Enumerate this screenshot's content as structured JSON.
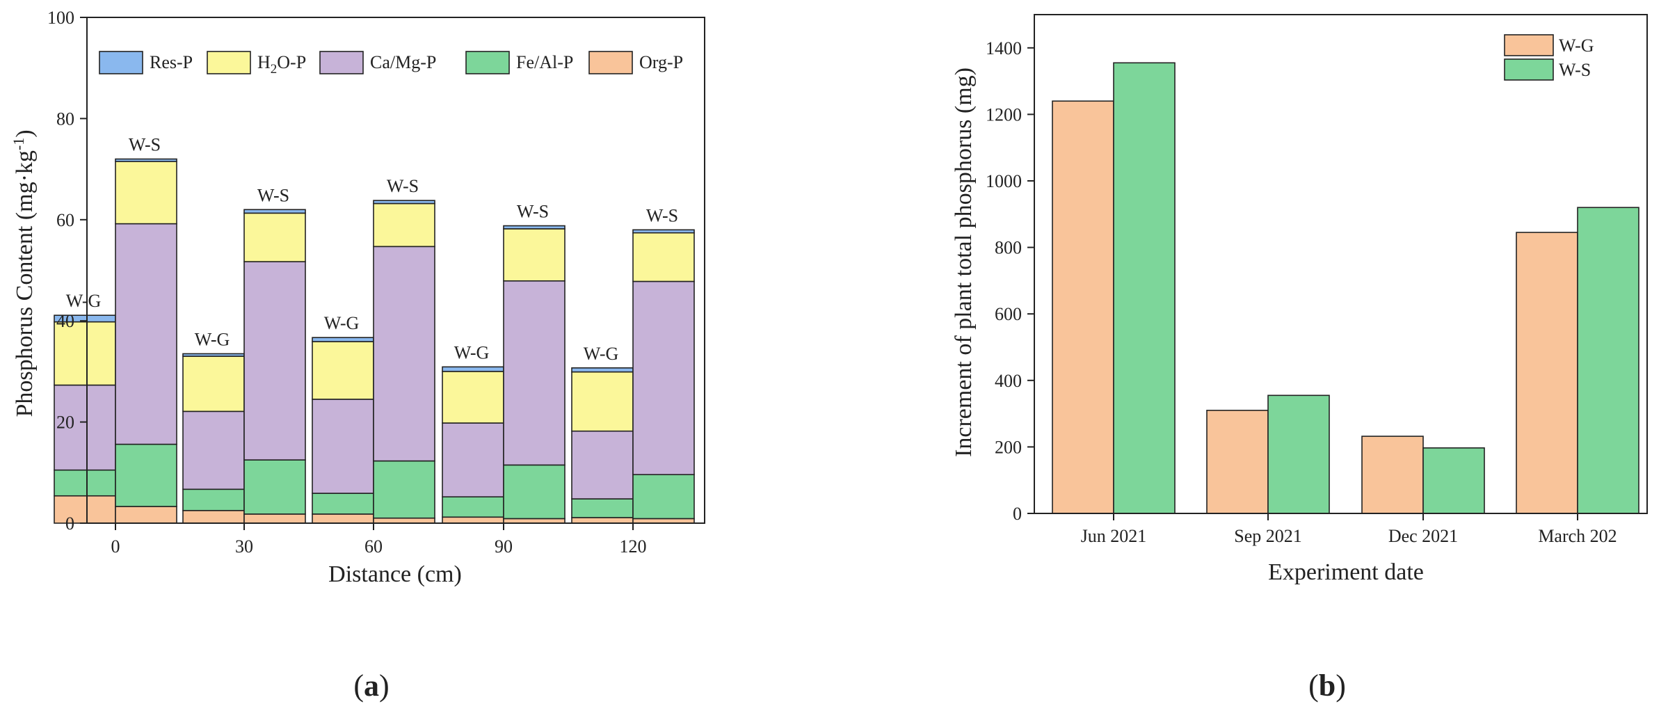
{
  "figure": {
    "panels": [
      {
        "panel_label": "a"
      },
      {
        "panel_label": "b"
      }
    ]
  },
  "chart_data": [
    {
      "type": "bar",
      "stacked": true,
      "title": "",
      "xlabel": "Distance (cm)",
      "ylabel_main": "Phosphorus Content (mg·kg",
      "ylabel_sup": "-1",
      "ylabel_end": ")",
      "ylim": [
        0,
        100
      ],
      "yticks": [
        0,
        20,
        40,
        60,
        80,
        100
      ],
      "categories": [
        "0",
        "30",
        "60",
        "90",
        "120"
      ],
      "groups": [
        "W-G",
        "W-S"
      ],
      "legend_position": "top",
      "colors": {
        "Org-P": "#f9c49a",
        "Fe/Al-P": "#7dd69a",
        "Ca/Mg-P": "#c7b3d8",
        "H2O-P": "#fbf79a",
        "Res-P": "#8ab8ee"
      },
      "legend": [
        {
          "key": "Res-P",
          "label": "Res-P"
        },
        {
          "key": "H2O-P",
          "label_pre": "H",
          "label_sub": "2",
          "label_post": "O-P"
        },
        {
          "key": "Ca/Mg-P",
          "label": "Ca/Mg-P"
        },
        {
          "key": "Fe/Al-P",
          "label": "Fe/Al-P"
        },
        {
          "key": "Org-P",
          "label": "Org-P"
        }
      ],
      "stack_order": [
        "Org-P",
        "Fe/Al-P",
        "Ca/Mg-P",
        "H2O-P",
        "Res-P"
      ],
      "bars": [
        {
          "category": "0",
          "group": "W-G",
          "values": {
            "Org-P": 5.4,
            "Fe/Al-P": 5.1,
            "Ca/Mg-P": 16.8,
            "H2O-P": 12.5,
            "Res-P": 1.3
          }
        },
        {
          "category": "0",
          "group": "W-S",
          "values": {
            "Org-P": 3.3,
            "Fe/Al-P": 12.3,
            "Ca/Mg-P": 43.6,
            "H2O-P": 12.3,
            "Res-P": 0.5
          }
        },
        {
          "category": "30",
          "group": "W-G",
          "values": {
            "Org-P": 2.5,
            "Fe/Al-P": 4.2,
            "Ca/Mg-P": 15.4,
            "H2O-P": 10.9,
            "Res-P": 0.5
          }
        },
        {
          "category": "30",
          "group": "W-S",
          "values": {
            "Org-P": 1.8,
            "Fe/Al-P": 10.7,
            "Ca/Mg-P": 39.2,
            "H2O-P": 9.6,
            "Res-P": 0.7
          }
        },
        {
          "category": "60",
          "group": "W-G",
          "values": {
            "Org-P": 1.8,
            "Fe/Al-P": 4.1,
            "Ca/Mg-P": 18.6,
            "H2O-P": 11.4,
            "Res-P": 0.8
          }
        },
        {
          "category": "60",
          "group": "W-S",
          "values": {
            "Org-P": 1.0,
            "Fe/Al-P": 11.3,
            "Ca/Mg-P": 42.4,
            "H2O-P": 8.5,
            "Res-P": 0.6
          }
        },
        {
          "category": "90",
          "group": "W-G",
          "values": {
            "Org-P": 1.2,
            "Fe/Al-P": 4.0,
            "Ca/Mg-P": 14.6,
            "H2O-P": 10.2,
            "Res-P": 0.9
          }
        },
        {
          "category": "90",
          "group": "W-S",
          "values": {
            "Org-P": 0.9,
            "Fe/Al-P": 10.6,
            "Ca/Mg-P": 36.4,
            "H2O-P": 10.3,
            "Res-P": 0.6
          }
        },
        {
          "category": "120",
          "group": "W-G",
          "values": {
            "Org-P": 1.1,
            "Fe/Al-P": 3.7,
            "Ca/Mg-P": 13.4,
            "H2O-P": 11.7,
            "Res-P": 0.8
          }
        },
        {
          "category": "120",
          "group": "W-S",
          "values": {
            "Org-P": 0.9,
            "Fe/Al-P": 8.7,
            "Ca/Mg-P": 38.2,
            "H2O-P": 9.6,
            "Res-P": 0.6
          }
        }
      ]
    },
    {
      "type": "bar",
      "stacked": false,
      "title": "",
      "xlabel": "Experiment date",
      "ylabel": "Increment of plant total phosphorus (mg)",
      "ylim": [
        0,
        1500
      ],
      "yticks": [
        0,
        200,
        400,
        600,
        800,
        1000,
        1200,
        1400
      ],
      "categories": [
        "Jun 2021",
        "Sep 2021",
        "Dec 2021",
        "March 202"
      ],
      "legend_position": "top-right",
      "series": [
        {
          "name": "W-G",
          "color": "#f9c49a",
          "values": [
            1240,
            310,
            232,
            845
          ]
        },
        {
          "name": "W-S",
          "color": "#7dd69a",
          "values": [
            1355,
            355,
            197,
            920
          ]
        }
      ]
    }
  ]
}
